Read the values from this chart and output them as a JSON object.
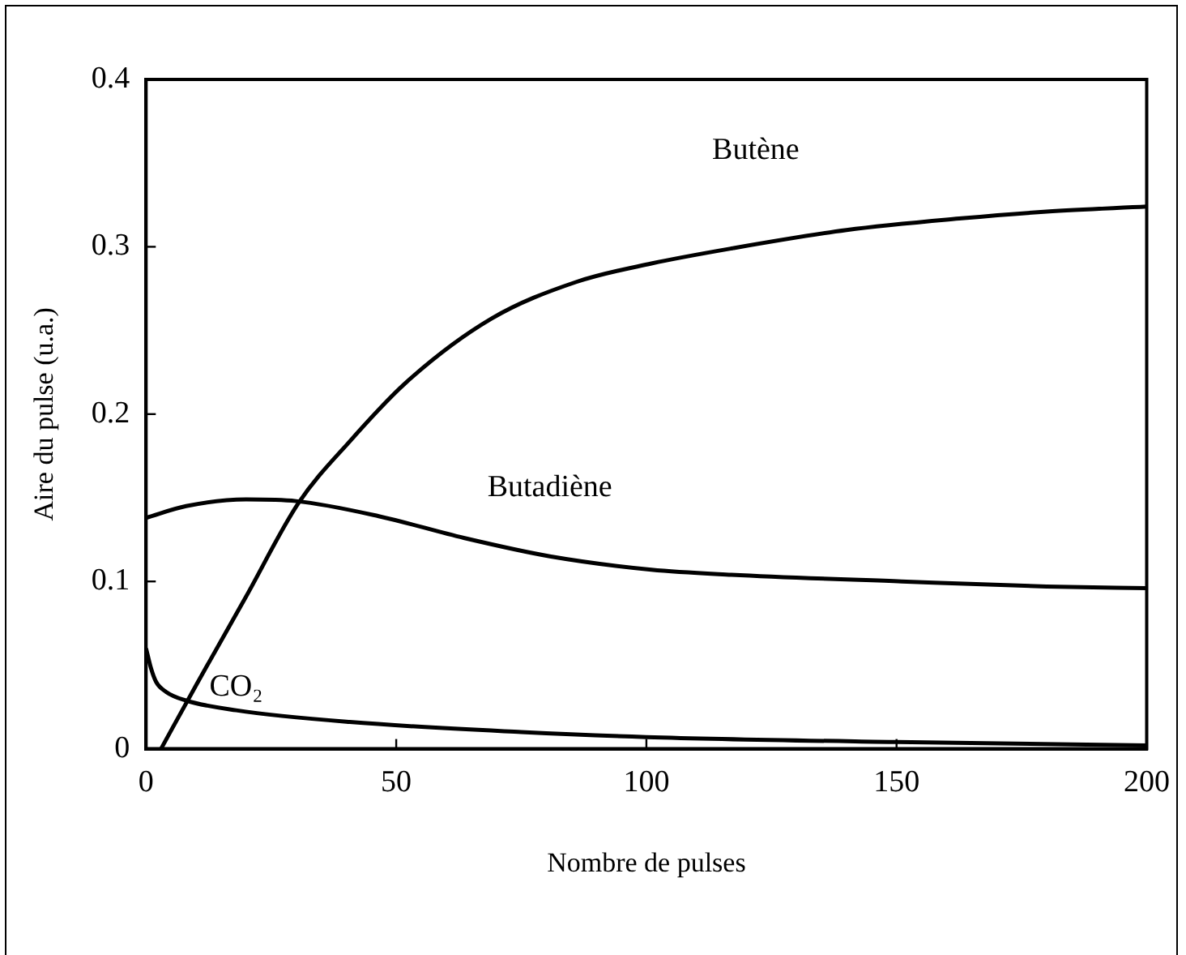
{
  "chart_data": {
    "type": "line",
    "xlabel": "Nombre de pulses",
    "ylabel": "Aire du pulse (u.a.)",
    "xlim": [
      0,
      200
    ],
    "xticks": [
      0,
      50,
      100,
      150,
      200
    ],
    "ylim": [
      0,
      0.4
    ],
    "yticks": [
      0,
      0.1,
      0.2,
      0.3,
      0.4
    ],
    "grid": false,
    "legend": false,
    "marker": "none",
    "line_style": "solid",
    "series": [
      {
        "name": "Butène",
        "color": "#000000",
        "x": [
          3,
          10,
          20,
          30.5,
          40.8,
          52,
          69,
          86,
          101,
          117,
          140,
          163,
          180,
          200
        ],
        "values": [
          0,
          0.038,
          0.091,
          0.147,
          0.184,
          0.219,
          0.257,
          0.279,
          0.29,
          0.299,
          0.31,
          0.317,
          0.321,
          0.324
        ]
      },
      {
        "name": "Butadiène",
        "color": "#000000",
        "x": [
          0,
          8,
          20,
          30,
          46.5,
          63.5,
          80.7,
          101,
          117,
          151,
          180,
          200
        ],
        "values": [
          0.138,
          0.145,
          0.149,
          0.148,
          0.139,
          0.126,
          0.115,
          0.107,
          0.104,
          0.1,
          0.097,
          0.096
        ]
      },
      {
        "name": "CO₂",
        "color": "#000000",
        "x": [
          0,
          1,
          2,
          4,
          7.8,
          18,
          40.7,
          75,
          100,
          150,
          200
        ],
        "values": [
          0.06,
          0.048,
          0.04,
          0.034,
          0.029,
          0.023,
          0.016,
          0.01,
          0.007,
          0.004,
          0.002
        ]
      }
    ]
  }
}
